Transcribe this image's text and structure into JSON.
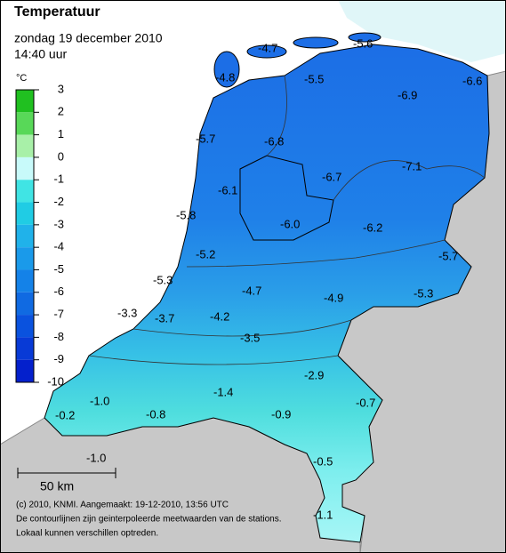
{
  "header": {
    "title": "Temperatuur",
    "date": "zondag 19 december 2010",
    "time": "14:40 uur"
  },
  "legend": {
    "unit": "°C",
    "ticks": [
      3,
      2,
      1,
      0,
      -1,
      -2,
      -3,
      -4,
      -5,
      -6,
      -7,
      -8,
      -9,
      -10
    ],
    "colors": [
      "#20c020",
      "#58d858",
      "#a8f0a8",
      "#c8fafa",
      "#40e4e4",
      "#20cce4",
      "#20b2ea",
      "#1a9aea",
      "#1482e8",
      "#106ae2",
      "#0a52de",
      "#083ad6",
      "#0420cc"
    ]
  },
  "stations": [
    "-4.7",
    "-5.6",
    "-4.8",
    "-5.5",
    "-6.9",
    "-6.6",
    "-5.7",
    "-6.8",
    "-6.7",
    "-7.1",
    "-6.1",
    "-5.8",
    "-6.0",
    "-6.2",
    "-5.7",
    "-5.2",
    "-5.3",
    "-4.7",
    "-4.9",
    "-5.3",
    "-3.3",
    "-3.7",
    "-4.2",
    "-3.5",
    "-2.9",
    "-1.4",
    "-0.7",
    "-1.0",
    "-0.2",
    "-0.8",
    "-0.9",
    "-0.5",
    "-1.0",
    "-1.1"
  ],
  "scale": "50 km",
  "footer": [
    "(c) 2010, KNMI. Aangemaakt: 19-12-2010, 13:56 UTC",
    "De contourlijnen zijn geinterpoleerde meetwaarden van de stations.",
    "Lokaal kunnen verschillen optreden."
  ]
}
